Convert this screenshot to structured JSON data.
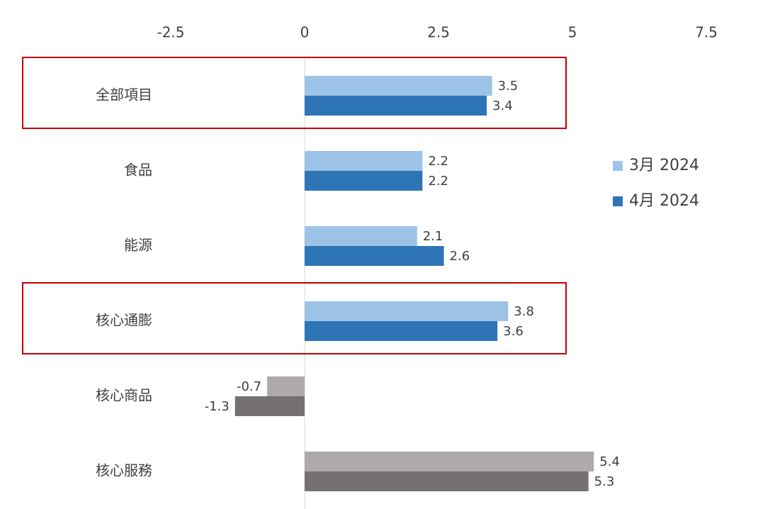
{
  "chart_data": {
    "type": "hbar",
    "categories": [
      "全部項目",
      "食品",
      "能源",
      "核心通膨",
      "核心商品",
      "核心服務"
    ],
    "series": [
      {
        "name": "3月 2024",
        "color": "#9dc3e6",
        "colors": [
          "#9dc3e6",
          "#9dc3e6",
          "#9dc3e6",
          "#9dc3e6",
          "#aeaaaa",
          "#aeaaaa"
        ],
        "values": [
          3.5,
          2.2,
          2.1,
          3.8,
          -0.7,
          5.4
        ]
      },
      {
        "name": "4月 2024",
        "color": "#2e75b6",
        "colors": [
          "#2e75b6",
          "#2e75b6",
          "#2e75b6",
          "#2e75b6",
          "#767171",
          "#767171"
        ],
        "values": [
          3.4,
          2.2,
          2.6,
          3.6,
          -1.3,
          5.3
        ]
      }
    ],
    "xlim": [
      -5,
      7.5
    ],
    "xticks": [
      -2.5,
      0,
      2.5,
      5,
      7.5
    ],
    "legend": "right",
    "highlighted_categories": [
      0,
      3
    ],
    "highlight_color": "#c00000"
  }
}
